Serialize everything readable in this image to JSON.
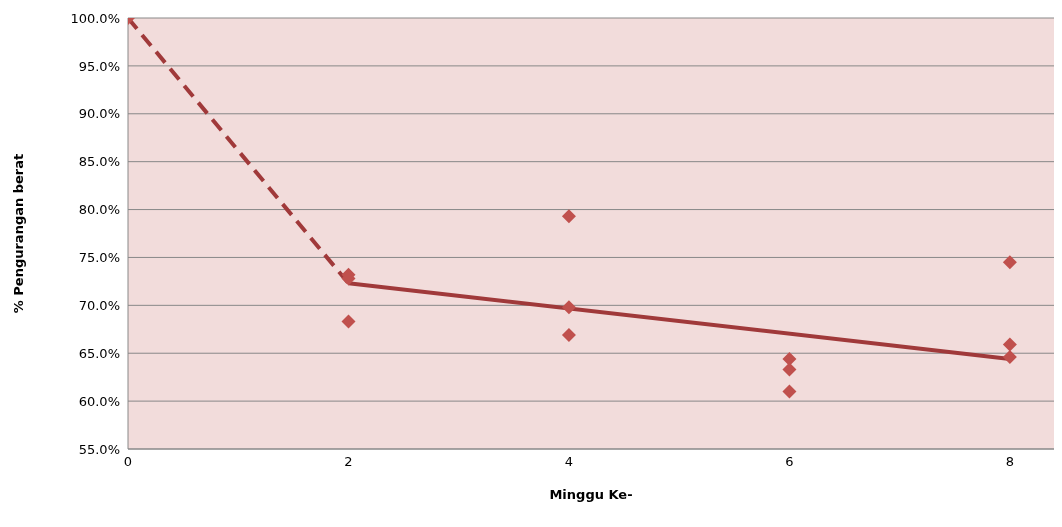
{
  "chart_data": {
    "type": "scatter",
    "xlabel": "Minggu Ke-",
    "ylabel": "% Pengurangan berat",
    "xlim": [
      0,
      8.4
    ],
    "xticks": [
      0,
      2,
      4,
      6,
      8
    ],
    "ylim": [
      55,
      100
    ],
    "yticks": [
      {
        "value": 55,
        "label": "55.0%"
      },
      {
        "value": 60,
        "label": "60.0%"
      },
      {
        "value": 65,
        "label": "65.0%"
      },
      {
        "value": 70,
        "label": "70.0%"
      },
      {
        "value": 75,
        "label": "75.0%"
      },
      {
        "value": 80,
        "label": "80.0%"
      },
      {
        "value": 85,
        "label": "85.0%"
      },
      {
        "value": 90,
        "label": "90.0%"
      },
      {
        "value": 95,
        "label": "95.0%"
      },
      {
        "value": 100,
        "label": "100.0%"
      }
    ],
    "grid": "y",
    "legend": false,
    "series": [
      {
        "color": "#c0504d",
        "marker": "diamond",
        "x": [
          0,
          2,
          2,
          2,
          4,
          4,
          4,
          6,
          6,
          6,
          8,
          8,
          8
        ],
        "values": [
          100,
          73.2,
          72.8,
          68.3,
          79.3,
          69.8,
          66.9,
          64.4,
          63.3,
          61.0,
          74.5,
          65.9,
          64.6
        ]
      },
      {
        "type": "line",
        "color": "#a0393a",
        "line_style": "dashed",
        "x": [
          0,
          2
        ],
        "values": [
          100,
          72.3
        ]
      },
      {
        "type": "line",
        "color": "#a0393a",
        "line_style": "solid",
        "x": [
          2,
          8
        ],
        "values": [
          72.3,
          64.4
        ]
      }
    ]
  }
}
